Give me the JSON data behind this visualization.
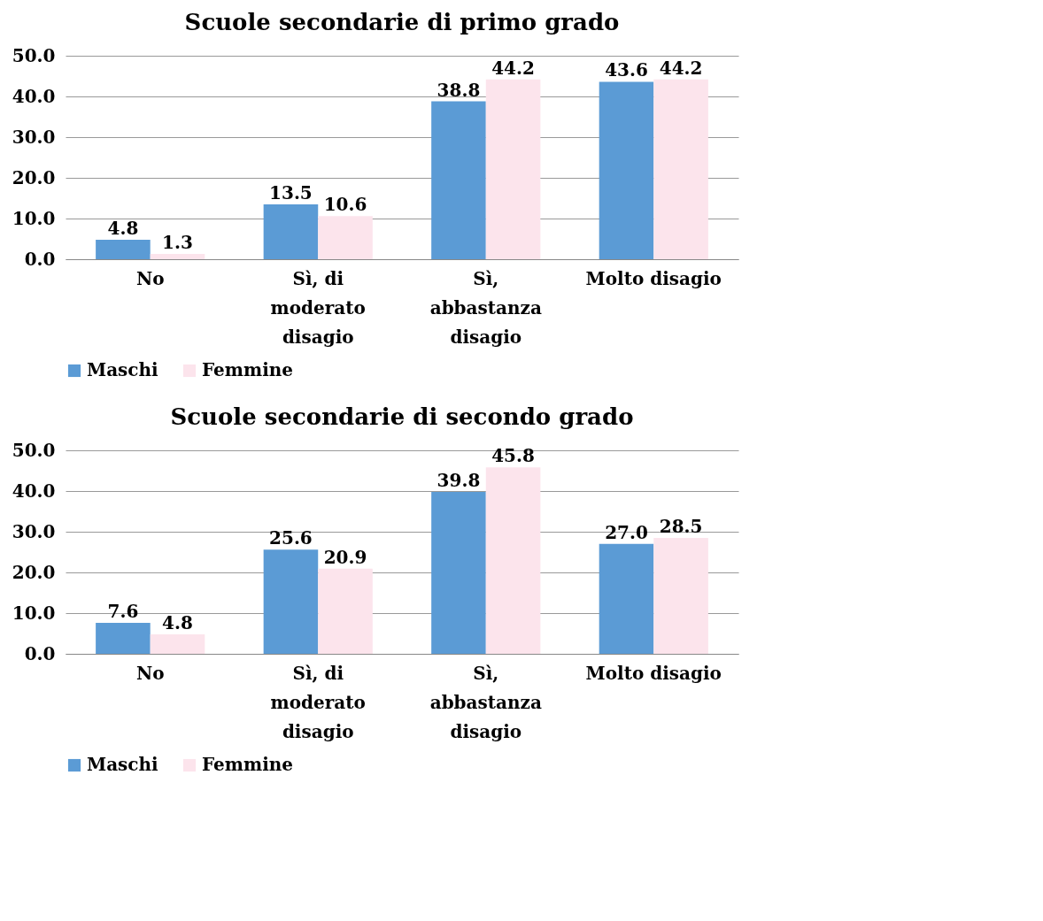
{
  "chart_data": [
    {
      "type": "bar",
      "title": "Scuole secondarie di primo grado",
      "categories": [
        "No",
        "Sì, di moderato disagio",
        "Sì, abbastanza disagio",
        "Molto disagio"
      ],
      "series": [
        {
          "name": "Maschi",
          "color": "#5b9bd5",
          "values": [
            4.8,
            13.5,
            38.8,
            43.6
          ],
          "value_labels": [
            "4.8",
            "13.5",
            "38.8",
            "43.6"
          ]
        },
        {
          "name": "Femmine",
          "color": "#fce4ec",
          "values": [
            1.3,
            10.6,
            44.2,
            44.2
          ],
          "value_labels": [
            "1.3",
            "10.6",
            "44.2",
            "44.2"
          ]
        }
      ],
      "ylim": [
        0,
        50
      ],
      "yticks": [
        {
          "value": 0,
          "label": "0.0"
        },
        {
          "value": 10,
          "label": "10.0"
        },
        {
          "value": 20,
          "label": "20.0"
        },
        {
          "value": 30,
          "label": "30.0"
        },
        {
          "value": 40,
          "label": "40.0"
        },
        {
          "value": 50,
          "label": "50.0"
        }
      ],
      "grid": "y",
      "legend": "bottom"
    },
    {
      "type": "bar",
      "title": "Scuole secondarie di secondo grado",
      "categories": [
        "No",
        "Sì, di moderato disagio",
        "Sì, abbastanza disagio",
        "Molto disagio"
      ],
      "series": [
        {
          "name": "Maschi",
          "color": "#5b9bd5",
          "values": [
            7.6,
            25.6,
            39.8,
            27.0
          ],
          "value_labels": [
            "7.6",
            "25.6",
            "39.8",
            "27.0"
          ]
        },
        {
          "name": "Femmine",
          "color": "#fce4ec",
          "values": [
            4.8,
            20.9,
            45.8,
            28.5
          ],
          "value_labels": [
            "4.8",
            "20.9",
            "45.8",
            "28.5"
          ]
        }
      ],
      "ylim": [
        0,
        50
      ],
      "yticks": [
        {
          "value": 0,
          "label": "0.0"
        },
        {
          "value": 10,
          "label": "10.0"
        },
        {
          "value": 20,
          "label": "20.0"
        },
        {
          "value": 30,
          "label": "30.0"
        },
        {
          "value": 40,
          "label": "40.0"
        },
        {
          "value": 50,
          "label": "50.0"
        }
      ],
      "grid": "y",
      "legend": "bottom"
    }
  ]
}
